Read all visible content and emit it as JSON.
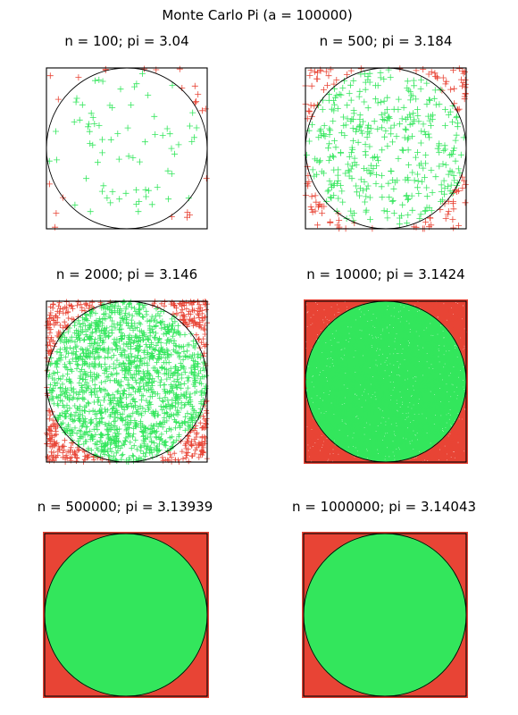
{
  "figure": {
    "title": "Monte Carlo Pi (a = 100000)"
  },
  "colors": {
    "inside": "#33e65c",
    "outside": "#e84435",
    "circle": "#000000",
    "frame": "#000000"
  },
  "chart_data": [
    {
      "type": "scatter",
      "title": "n = 100; pi = 3.04",
      "n": 100,
      "pi": 3.04,
      "marker": "+",
      "xlim": [
        0,
        1
      ],
      "ylim": [
        0,
        1
      ],
      "axes_visible": false,
      "grid": false
    },
    {
      "type": "scatter",
      "title": "n = 500; pi = 3.184",
      "n": 500,
      "pi": 3.184,
      "marker": "+",
      "xlim": [
        0,
        1
      ],
      "ylim": [
        0,
        1
      ],
      "axes_visible": false,
      "grid": false
    },
    {
      "type": "scatter",
      "title": "n = 2000; pi = 3.146",
      "n": 2000,
      "pi": 3.146,
      "marker": "+",
      "xlim": [
        0,
        1
      ],
      "ylim": [
        0,
        1
      ],
      "axes_visible": false,
      "grid": false
    },
    {
      "type": "scatter",
      "title": "n = 10000; pi = 3.1424",
      "n": 10000,
      "pi": 3.1424,
      "marker": "+",
      "xlim": [
        0,
        1
      ],
      "ylim": [
        0,
        1
      ],
      "axes_visible": false,
      "grid": false
    },
    {
      "type": "scatter",
      "title": "n = 500000; pi = 3.13939",
      "n": 500000,
      "pi": 3.13939,
      "marker": "+",
      "xlim": [
        0,
        1
      ],
      "ylim": [
        0,
        1
      ],
      "axes_visible": false,
      "grid": false
    },
    {
      "type": "scatter",
      "title": "n = 1000000; pi = 3.14043",
      "n": 1000000,
      "pi": 3.14043,
      "marker": "+",
      "xlim": [
        0,
        1
      ],
      "ylim": [
        0,
        1
      ],
      "axes_visible": false,
      "grid": false
    }
  ]
}
